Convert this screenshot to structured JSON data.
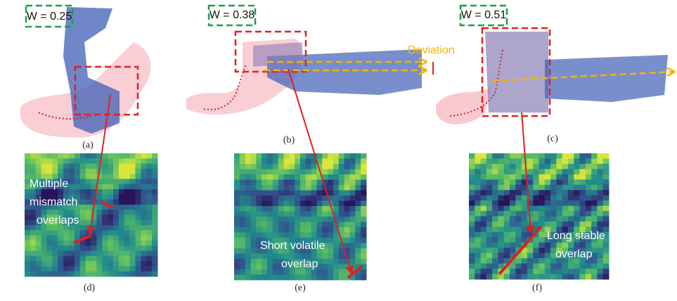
{
  "panels": [
    {
      "weight_label": "W = 0.25",
      "caption": "(a)"
    },
    {
      "weight_label": "W = 0.38",
      "caption": "(b)"
    },
    {
      "weight_label": "W = 0.51",
      "caption": "(c)"
    }
  ],
  "deviation_label": "Deviation",
  "heatmaps": [
    {
      "caption": "(d)",
      "annotation": [
        "Multiple",
        "mismatch",
        "overlaps"
      ]
    },
    {
      "caption": "(e)",
      "annotation": [
        "Short volatile",
        "overlap"
      ]
    },
    {
      "caption": "(f)",
      "annotation": [
        "Long stable",
        "overlap"
      ]
    }
  ]
}
